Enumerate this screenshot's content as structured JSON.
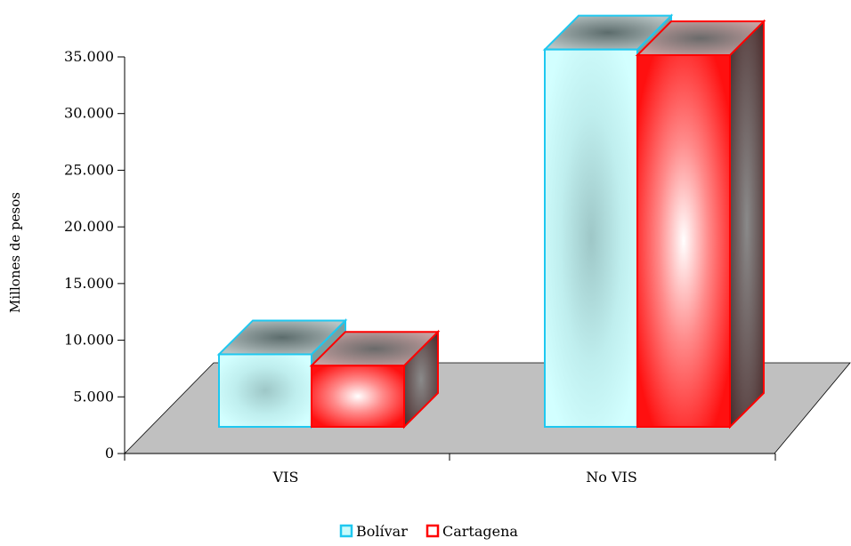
{
  "chart_data": {
    "type": "bar",
    "style": "3d-clustered-column",
    "categories": [
      "VIS",
      "No VIS"
    ],
    "series": [
      {
        "name": "Bolívar",
        "values": [
          6400,
          33300
        ],
        "color": "#c8fbfb",
        "border": "#1ec8f0"
      },
      {
        "name": "Cartagena",
        "values": [
          5400,
          32800
        ],
        "color": "#ff2020",
        "border": "#ff0000"
      }
    ],
    "ylabel": "Millones de pesos",
    "ylim": [
      0,
      35000
    ],
    "yticks": [
      0,
      5000,
      10000,
      15000,
      20000,
      25000,
      30000,
      35000
    ],
    "ytick_labels": [
      "0",
      "5.000",
      "10.000",
      "15.000",
      "20.000",
      "25.000",
      "30.000",
      "35.000"
    ],
    "floor_color": "#c0c0c0",
    "grid": false,
    "legend_position": "bottom-center"
  }
}
